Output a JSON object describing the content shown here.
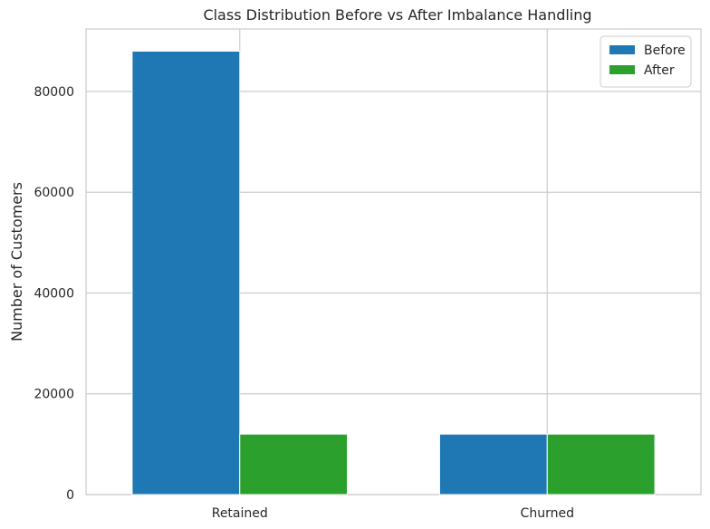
{
  "chart_data": {
    "type": "bar",
    "title": "Class Distribution Before vs After Imbalance Handling",
    "xlabel": "",
    "ylabel": "Number of Customers",
    "categories": [
      "Retained",
      "Churned"
    ],
    "series": [
      {
        "name": "Before",
        "values": [
          88000,
          12000
        ],
        "color": "#1f77b4"
      },
      {
        "name": "After",
        "values": [
          12000,
          12000
        ],
        "color": "#2ca02c"
      }
    ],
    "ylim": [
      0,
      92400
    ],
    "yticks": [
      0,
      20000,
      40000,
      60000,
      80000
    ],
    "grid": true,
    "legend": {
      "position": "top-right"
    }
  }
}
